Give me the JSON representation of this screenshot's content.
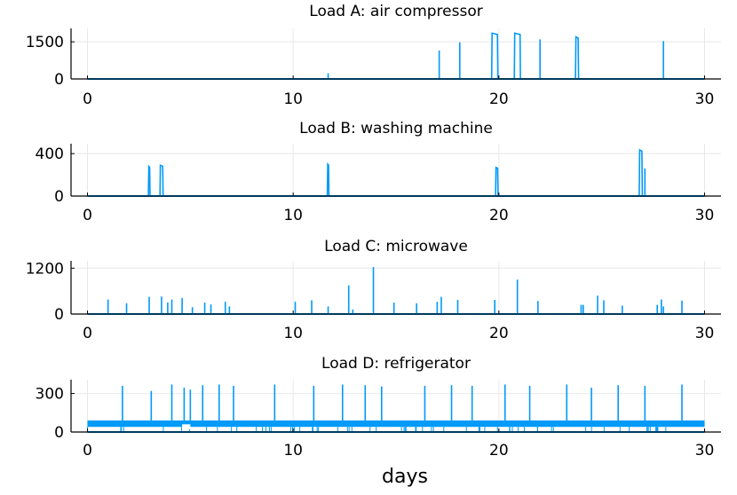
{
  "chart_data": [
    {
      "type": "line",
      "title": "Load A: air compressor",
      "xlabel": "",
      "ylabel": "",
      "xlim": [
        -0.8,
        30.8
      ],
      "ylim": [
        0,
        1900
      ],
      "yticks": [
        0,
        1500
      ],
      "xticks": [
        0,
        10,
        20,
        30
      ],
      "grid": true,
      "series": [
        {
          "color": "#009af9",
          "baseline": 0,
          "x_range": [
            0,
            30
          ],
          "spikes": [
            {
              "x": 11.7,
              "y": 230,
              "width": 0.05
            },
            {
              "x": 17.1,
              "y": 1150,
              "width": 0.05
            },
            {
              "x": 18.1,
              "y": 1480,
              "width": 0.05
            },
            {
              "x": 19.8,
              "y": 1850,
              "width": 0.3
            },
            {
              "x": 20.9,
              "y": 1850,
              "width": 0.3
            },
            {
              "x": 22.0,
              "y": 1600,
              "width": 0.05
            },
            {
              "x": 23.8,
              "y": 1700,
              "width": 0.15
            },
            {
              "x": 28.0,
              "y": 1530,
              "width": 0.05
            }
          ]
        }
      ]
    },
    {
      "type": "line",
      "title": "Load B: washing machine",
      "xlabel": "",
      "ylabel": "",
      "xlim": [
        -0.8,
        30.8
      ],
      "ylim": [
        0,
        460
      ],
      "yticks": [
        0,
        400
      ],
      "xticks": [
        0,
        10,
        20,
        30
      ],
      "grid": true,
      "series": [
        {
          "color": "#009af9",
          "baseline": 0,
          "x_range": [
            0,
            30
          ],
          "spikes": [
            {
              "x": 3.0,
              "y": 280,
              "width": 0.08
            },
            {
              "x": 3.6,
              "y": 290,
              "width": 0.15
            },
            {
              "x": 11.7,
              "y": 300,
              "width": 0.08
            },
            {
              "x": 19.9,
              "y": 270,
              "width": 0.12
            },
            {
              "x": 26.9,
              "y": 435,
              "width": 0.15
            },
            {
              "x": 27.1,
              "y": 260,
              "width": 0.05
            }
          ]
        }
      ]
    },
    {
      "type": "line",
      "title": "Load C: microwave",
      "xlabel": "",
      "ylabel": "",
      "xlim": [
        -0.8,
        30.8
      ],
      "ylim": [
        0,
        1300
      ],
      "yticks": [
        0,
        1200
      ],
      "xticks": [
        0,
        10,
        20,
        30
      ],
      "grid": true,
      "series": [
        {
          "color": "#009af9",
          "baseline": 0,
          "x_range": [
            0,
            30
          ],
          "spikes": [
            {
              "x": 1.0,
              "y": 380
            },
            {
              "x": 1.9,
              "y": 280
            },
            {
              "x": 3.0,
              "y": 450
            },
            {
              "x": 3.6,
              "y": 460
            },
            {
              "x": 3.9,
              "y": 300
            },
            {
              "x": 4.1,
              "y": 380
            },
            {
              "x": 4.6,
              "y": 420
            },
            {
              "x": 5.1,
              "y": 180
            },
            {
              "x": 5.7,
              "y": 300
            },
            {
              "x": 6.0,
              "y": 250
            },
            {
              "x": 6.7,
              "y": 320
            },
            {
              "x": 6.9,
              "y": 200
            },
            {
              "x": 10.1,
              "y": 320
            },
            {
              "x": 10.9,
              "y": 360
            },
            {
              "x": 11.7,
              "y": 200
            },
            {
              "x": 12.7,
              "y": 750
            },
            {
              "x": 12.9,
              "y": 120
            },
            {
              "x": 13.9,
              "y": 1230
            },
            {
              "x": 14.9,
              "y": 300
            },
            {
              "x": 16.0,
              "y": 280
            },
            {
              "x": 17.0,
              "y": 320
            },
            {
              "x": 17.2,
              "y": 450
            },
            {
              "x": 18.0,
              "y": 370
            },
            {
              "x": 19.8,
              "y": 370
            },
            {
              "x": 20.9,
              "y": 900
            },
            {
              "x": 21.9,
              "y": 340
            },
            {
              "x": 24.0,
              "y": 240
            },
            {
              "x": 24.1,
              "y": 240
            },
            {
              "x": 24.8,
              "y": 480
            },
            {
              "x": 25.1,
              "y": 360
            },
            {
              "x": 26.0,
              "y": 220
            },
            {
              "x": 27.7,
              "y": 240
            },
            {
              "x": 27.9,
              "y": 380
            },
            {
              "x": 28.0,
              "y": 200
            },
            {
              "x": 28.9,
              "y": 350
            }
          ]
        }
      ]
    },
    {
      "type": "line",
      "title": "Load D: refrigerator",
      "xlabel": "days",
      "ylabel": "",
      "xlim": [
        -0.8,
        30.8
      ],
      "ylim": [
        0,
        380
      ],
      "yticks": [
        0,
        300
      ],
      "xticks": [
        0,
        10,
        20,
        30
      ],
      "grid": true,
      "series": [
        {
          "color": "#009af9",
          "baseline": 90,
          "band_low": 40,
          "x_range": [
            0,
            30
          ],
          "spikes": [
            {
              "x": 1.7,
              "y": 360
            },
            {
              "x": 3.1,
              "y": 320
            },
            {
              "x": 4.1,
              "y": 370
            },
            {
              "x": 4.7,
              "y": 345
            },
            {
              "x": 5.0,
              "y": 330
            },
            {
              "x": 5.6,
              "y": 365
            },
            {
              "x": 6.4,
              "y": 370
            },
            {
              "x": 7.1,
              "y": 360
            },
            {
              "x": 9.1,
              "y": 370
            },
            {
              "x": 11.0,
              "y": 360
            },
            {
              "x": 12.4,
              "y": 370
            },
            {
              "x": 13.5,
              "y": 365
            },
            {
              "x": 14.3,
              "y": 355
            },
            {
              "x": 16.4,
              "y": 360
            },
            {
              "x": 17.7,
              "y": 365
            },
            {
              "x": 18.7,
              "y": 360
            },
            {
              "x": 20.3,
              "y": 370
            },
            {
              "x": 21.5,
              "y": 360
            },
            {
              "x": 23.3,
              "y": 370
            },
            {
              "x": 24.5,
              "y": 345
            },
            {
              "x": 25.8,
              "y": 365
            },
            {
              "x": 27.1,
              "y": 360
            },
            {
              "x": 28.9,
              "y": 370
            }
          ]
        }
      ]
    }
  ]
}
